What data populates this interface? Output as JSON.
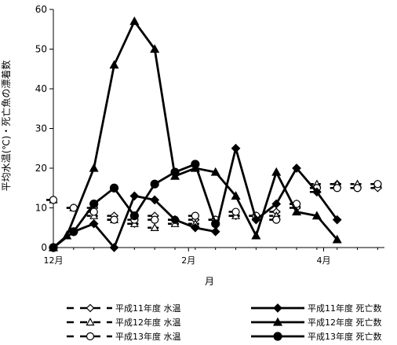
{
  "chart_data": {
    "type": "line",
    "title": "",
    "xlabel": "月",
    "ylabel": "平均水温(℃)・死亡魚の漂着数",
    "ylim": [
      0,
      60
    ],
    "y_ticks": [
      0,
      10,
      20,
      30,
      40,
      50,
      60
    ],
    "x_tick_labels": [
      {
        "label": "12月",
        "x": 0
      },
      {
        "label": "2月",
        "x": 10
      },
      {
        "label": "4月",
        "x": 20
      }
    ],
    "x_range": [
      0,
      24.5
    ],
    "grid": false,
    "legend_position": "bottom",
    "series": [
      {
        "name": "平成11年度 水温",
        "kind": "water_temp",
        "marker": "diamond-open",
        "x": [
          0,
          1.5,
          3,
          4.5,
          6,
          7.5,
          9,
          10.5,
          12,
          13.5,
          15,
          16.5,
          18,
          19.5,
          21,
          22.5,
          24
        ],
        "values": [
          null,
          4,
          10,
          8,
          6,
          8,
          7,
          7,
          7,
          8,
          8,
          9,
          10,
          14,
          16,
          15,
          15
        ]
      },
      {
        "name": "平成12年度 水温",
        "kind": "water_temp",
        "marker": "triangle-open",
        "x": [
          0,
          1.5,
          3,
          4.5,
          6,
          7.5,
          9,
          10.5,
          12,
          13.5,
          15,
          16.5,
          18,
          19.5,
          21,
          22.5,
          24
        ],
        "values": [
          12,
          10,
          8,
          7,
          6,
          5,
          6,
          6,
          7,
          8,
          8,
          8,
          11,
          16,
          16,
          16,
          16
        ]
      },
      {
        "name": "平成13年度 水温",
        "kind": "water_temp",
        "marker": "circle-open",
        "x": [
          0,
          1.5,
          3,
          4.5,
          6,
          7.5,
          9,
          10.5,
          12,
          13.5,
          15,
          16.5,
          18,
          19.5,
          21,
          22.5,
          24
        ],
        "values": [
          12,
          10,
          9,
          7,
          7,
          7,
          7,
          8,
          7,
          9,
          8,
          7,
          11,
          15,
          15,
          15,
          16
        ]
      },
      {
        "name": "平成11年度 死亡数",
        "kind": "deaths",
        "marker": "diamond-filled",
        "x": [
          0,
          1.5,
          3,
          4.5,
          6,
          7.5,
          9,
          10.5,
          12,
          13.5,
          15,
          16.5,
          18,
          19.5,
          21,
          22.5,
          24
        ],
        "values": [
          0,
          4,
          6,
          0,
          13,
          12,
          7,
          5,
          4,
          25,
          7,
          11,
          20,
          14,
          7,
          null,
          null
        ]
      },
      {
        "name": "平成12年度 死亡数",
        "kind": "deaths",
        "marker": "triangle-filled",
        "x": [
          0,
          1,
          3,
          4.5,
          6,
          7.5,
          9,
          10.5,
          12,
          13.5,
          15,
          16.5,
          18,
          19.5,
          21,
          22.5,
          24
        ],
        "values": [
          0,
          3,
          20,
          46,
          57,
          50,
          18,
          20,
          19,
          13,
          3,
          19,
          9,
          8,
          2,
          null,
          null
        ]
      },
      {
        "name": "平成13年度 死亡数",
        "kind": "deaths",
        "marker": "circle-filled",
        "x": [
          0,
          1.5,
          3,
          4.5,
          6,
          7.5,
          9,
          10.5,
          12,
          13.5,
          15,
          16.5,
          18,
          19.5,
          21,
          22.5,
          24
        ],
        "values": [
          0,
          4,
          11,
          15,
          8,
          16,
          19,
          21,
          6,
          null,
          null,
          null,
          null,
          null,
          null,
          null,
          null
        ]
      }
    ]
  }
}
